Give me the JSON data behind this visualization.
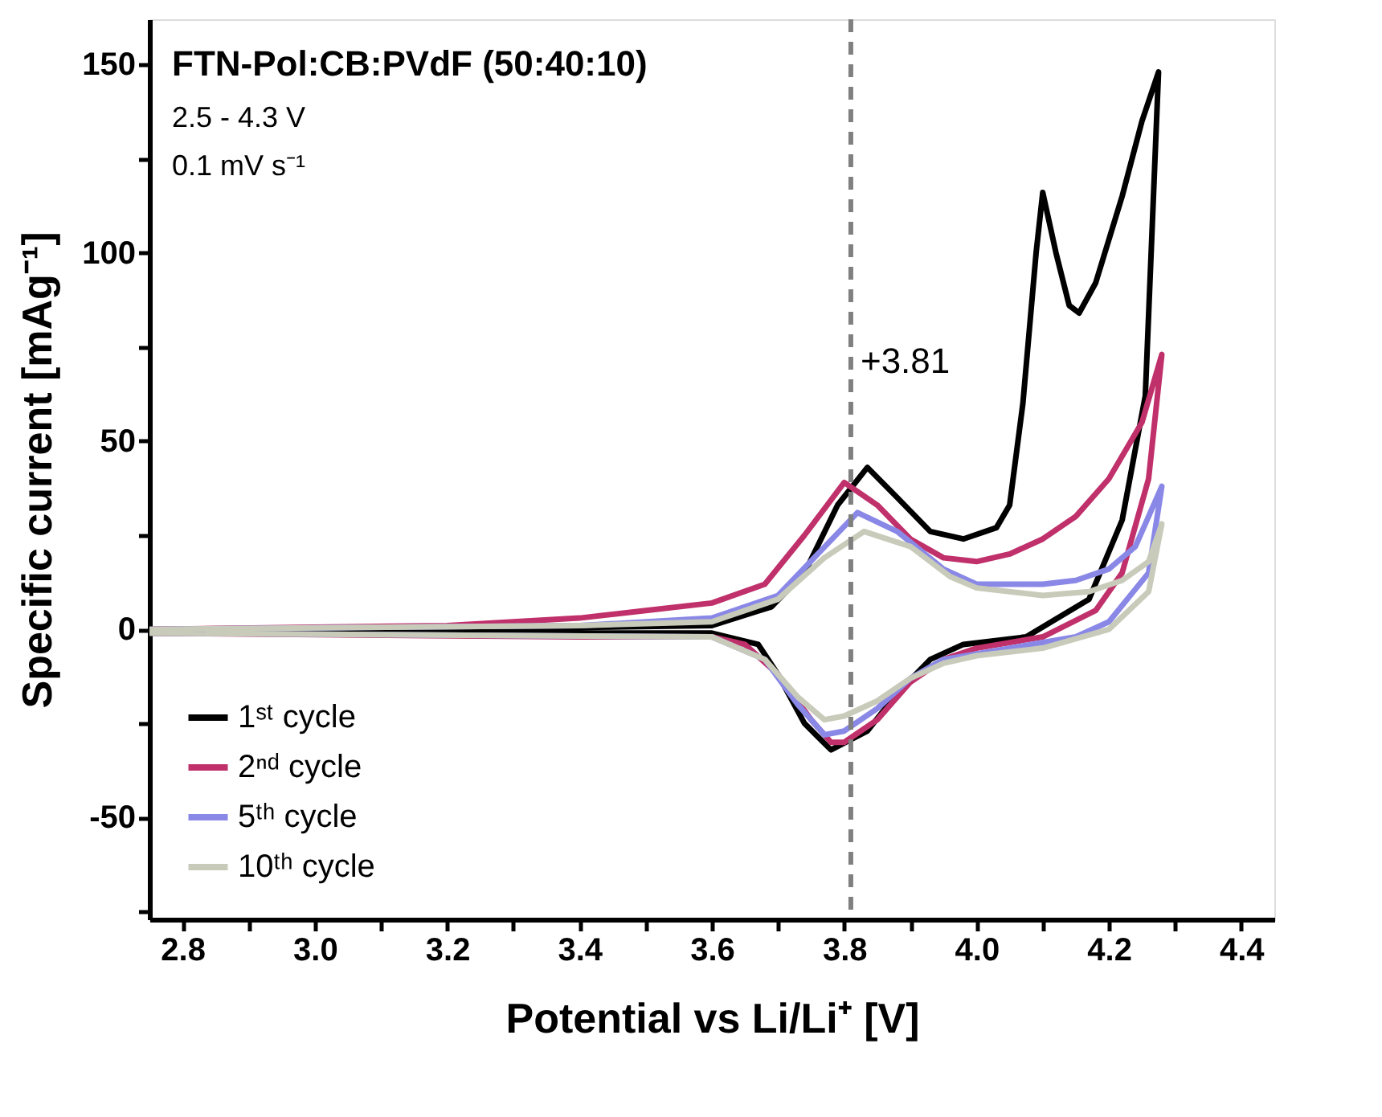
{
  "chart_data": {
    "type": "line",
    "title": "FTN-Pol:CB:PVdF (50:40:10)",
    "annotations": [
      "2.5 - 4.3 V",
      "0.1 mV s⁻¹"
    ],
    "xlabel": "Potential vs Li/Li⁺ [V]",
    "ylabel": "Specific current [mAg⁻¹]",
    "xlim": [
      2.75,
      4.45
    ],
    "ylim": [
      -77,
      162
    ],
    "xticks": [
      2.8,
      {
        "value": 2.9,
        "label": null
      },
      {
        "value": 3.0,
        "label": "3.0"
      },
      {
        "value": 3.1,
        "label": null
      },
      3.2,
      {
        "value": 3.3,
        "label": null
      },
      3.4,
      {
        "value": 3.5,
        "label": null
      },
      3.6,
      {
        "value": 3.7,
        "label": null
      },
      3.8,
      {
        "value": 3.9,
        "label": null
      },
      {
        "value": 4.0,
        "label": "4.0"
      },
      {
        "value": 4.1,
        "label": null
      },
      4.2,
      {
        "value": 4.3,
        "label": null
      },
      4.4
    ],
    "yticks": [
      {
        "value": -75,
        "label": null
      },
      -50,
      {
        "value": -25,
        "label": null
      },
      0,
      {
        "value": 25,
        "label": null
      },
      50,
      {
        "value": 75,
        "label": null
      },
      100,
      {
        "value": 125,
        "label": null
      },
      150
    ],
    "grid": false,
    "legend": "bottom left",
    "line_style": "solid",
    "marker": "none",
    "ref_lines": [
      {
        "axis": "x",
        "value": 3.81,
        "label": "+3.81",
        "color": "#808080",
        "line_style": "dashed"
      }
    ],
    "series": [
      {
        "name": "1ˢᵗ cycle",
        "color": "#000000",
        "x": [
          2.75,
          3.0,
          3.4,
          3.6,
          3.69,
          3.74,
          3.79,
          3.835,
          3.88,
          3.93,
          3.98,
          4.03,
          4.05,
          4.07,
          4.09,
          4.1,
          4.12,
          4.14,
          4.155,
          4.18,
          4.22,
          4.25,
          4.275,
          4.255,
          4.22,
          4.17,
          4.075,
          3.98,
          3.93,
          3.88,
          3.835,
          3.78,
          3.74,
          3.7,
          3.67,
          3.6,
          3.4,
          3.0,
          2.75
        ],
        "values": [
          0,
          0,
          0.5,
          1,
          6,
          15,
          33,
          43,
          35,
          26,
          24,
          27,
          33,
          60,
          100,
          116,
          100,
          86,
          84,
          92,
          115,
          135,
          148,
          62,
          29,
          8,
          -2,
          -4,
          -8,
          -17,
          -27,
          -32,
          -25,
          -12,
          -4,
          -1,
          -1,
          -1,
          -1
        ]
      },
      {
        "name": "2ⁿᵈ cycle",
        "color": "#c0306a",
        "x": [
          2.75,
          3.2,
          3.4,
          3.5,
          3.6,
          3.68,
          3.74,
          3.8,
          3.85,
          3.9,
          3.95,
          4.0,
          4.05,
          4.1,
          4.15,
          4.2,
          4.25,
          4.28,
          4.26,
          4.22,
          4.18,
          4.1,
          4.0,
          3.95,
          3.9,
          3.85,
          3.8,
          3.78,
          3.75,
          3.7,
          3.65,
          3.6,
          3.4,
          2.75
        ],
        "values": [
          0,
          1,
          3,
          5,
          7,
          12,
          25,
          39,
          33,
          24,
          19,
          18,
          20,
          24,
          30,
          40,
          55,
          73,
          40,
          15,
          5,
          -2,
          -5,
          -8,
          -14,
          -24,
          -30,
          -30,
          -24,
          -12,
          -4,
          -2,
          -2,
          -1
        ]
      },
      {
        "name": "5ᵗʰ cycle",
        "color": "#8a88e6",
        "x": [
          2.75,
          3.4,
          3.6,
          3.7,
          3.76,
          3.82,
          3.88,
          3.95,
          4.0,
          4.1,
          4.15,
          4.2,
          4.24,
          4.28,
          4.26,
          4.2,
          4.15,
          4.05,
          3.95,
          3.9,
          3.85,
          3.8,
          3.77,
          3.73,
          3.68,
          3.6,
          2.75
        ],
        "values": [
          0,
          1,
          3,
          9,
          20,
          31,
          26,
          16,
          12,
          12,
          13,
          16,
          22,
          38,
          15,
          2,
          -2,
          -5,
          -8,
          -13,
          -21,
          -27,
          -28,
          -20,
          -8,
          -2,
          -1
        ]
      },
      {
        "name": "10ᵗʰ cycle",
        "color": "#c8cbba",
        "x": [
          2.75,
          3.4,
          3.6,
          3.7,
          3.77,
          3.83,
          3.9,
          3.96,
          4.0,
          4.1,
          4.17,
          4.22,
          4.26,
          4.28,
          4.26,
          4.2,
          4.1,
          4.0,
          3.95,
          3.9,
          3.85,
          3.8,
          3.77,
          3.73,
          3.68,
          3.6,
          2.75
        ],
        "values": [
          0,
          1,
          2,
          8,
          19,
          26,
          22,
          14,
          11,
          9,
          10,
          13,
          18,
          28,
          10,
          0,
          -5,
          -7,
          -9,
          -13,
          -19,
          -23,
          -24,
          -18,
          -8,
          -2,
          -1
        ]
      }
    ]
  }
}
